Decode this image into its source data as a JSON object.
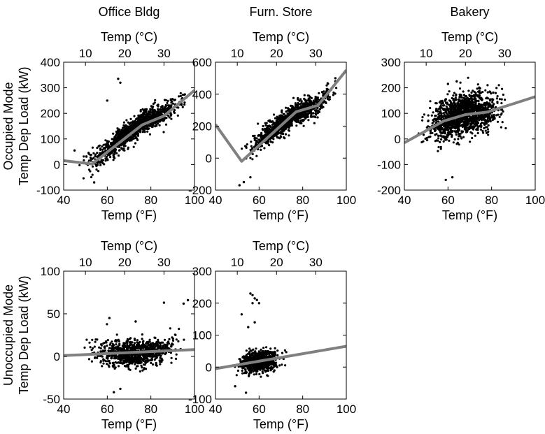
{
  "figure": {
    "row_labels": [
      {
        "line1": "Occupied Mode",
        "line2": "Temp Dep Load (kW)"
      },
      {
        "line1": "Unoccupied Mode",
        "line2": "Temp Dep Load (kW)"
      }
    ],
    "xlabel_bottom": "Temp (°F)",
    "xlabel_top": "Temp (°C)",
    "point_color": "#000000",
    "fit_color": "#808080"
  },
  "chart_data": [
    {
      "type": "scatter",
      "title": "Office Bldg",
      "row": 0,
      "col": 0,
      "xlim": [
        40,
        100
      ],
      "ylim": [
        -100,
        400
      ],
      "xticks": [
        40,
        60,
        80,
        100
      ],
      "yticks": [
        -100,
        0,
        100,
        200,
        300,
        400
      ],
      "top_xticks_c": [
        10,
        20,
        30
      ],
      "xlabel": "Temp (°F)",
      "top_xlabel": "Temp (°C)",
      "fit_line": {
        "x": [
          40,
          53,
          76,
          86,
          100
        ],
        "y": [
          15,
          2,
          155,
          190,
          290
        ]
      },
      "points": {
        "x_range": [
          45,
          100
        ],
        "y_base": {
          "x": [
            45,
            53,
            76,
            86,
            100
          ],
          "y": [
            10,
            5,
            165,
            200,
            290
          ]
        },
        "spread": 38,
        "count": 1200,
        "outliers": [
          [
            65,
            335
          ],
          [
            66,
            320
          ],
          [
            60,
            250
          ],
          [
            45,
            55
          ],
          [
            54,
            -70
          ]
        ]
      }
    },
    {
      "type": "scatter",
      "title": "Furn. Store",
      "row": 0,
      "col": 1,
      "xlim": [
        40,
        100
      ],
      "ylim": [
        -200,
        600
      ],
      "xticks": [
        40,
        60,
        80,
        100
      ],
      "yticks": [
        -200,
        0,
        200,
        400,
        600
      ],
      "top_xticks_c": [
        10,
        20,
        30
      ],
      "xlabel": "Temp (°F)",
      "top_xlabel": "Temp (°C)",
      "fit_line": {
        "x": [
          40,
          52,
          77,
          87,
          100
        ],
        "y": [
          210,
          -20,
          290,
          330,
          550
        ]
      },
      "points": {
        "x_range": [
          50,
          98
        ],
        "y_base": {
          "x": [
            50,
            52,
            77,
            87,
            98
          ],
          "y": [
            20,
            20,
            280,
            340,
            450
          ]
        },
        "spread": 60,
        "count": 1200,
        "outliers": [
          [
            51,
            -170
          ],
          [
            53,
            -150
          ],
          [
            56,
            -120
          ],
          [
            95,
            500
          ]
        ]
      }
    },
    {
      "type": "scatter",
      "title": "Bakery",
      "row": 0,
      "col": 2,
      "xlim": [
        40,
        100
      ],
      "ylim": [
        -200,
        300
      ],
      "xticks": [
        40,
        60,
        80,
        100
      ],
      "yticks": [
        -200,
        -100,
        0,
        100,
        200,
        300
      ],
      "top_xticks_c": [
        10,
        20,
        30
      ],
      "xlabel": "Temp (°F)",
      "top_xlabel": "Temp (°C)",
      "fit_line": {
        "x": [
          40,
          58,
          68,
          78,
          100
        ],
        "y": [
          -15,
          70,
          95,
          105,
          165
        ]
      },
      "points": {
        "x_range": [
          45,
          90
        ],
        "y_base": {
          "x": [
            45,
            58,
            68,
            78,
            90
          ],
          "y": [
            20,
            70,
            100,
            110,
            120
          ]
        },
        "spread": 70,
        "count": 1400,
        "outliers": [
          [
            59,
            -160
          ],
          [
            62,
            -150
          ],
          [
            64,
            225
          ],
          [
            60,
            215
          ]
        ]
      }
    },
    {
      "type": "scatter",
      "title": "",
      "row": 1,
      "col": 0,
      "xlim": [
        40,
        100
      ],
      "ylim": [
        -50,
        100
      ],
      "xticks": [
        40,
        60,
        80,
        100
      ],
      "yticks": [
        -50,
        0,
        50,
        100
      ],
      "top_xticks_c": [
        10,
        20,
        30
      ],
      "xlabel": "Temp (°F)",
      "top_xlabel": "Temp (°C)",
      "fit_line": {
        "x": [
          40,
          100
        ],
        "y": [
          1,
          8
        ]
      },
      "points": {
        "x_range": [
          48,
          98
        ],
        "y_base": {
          "x": [
            48,
            70,
            85,
            98
          ],
          "y": [
            8,
            2,
            8,
            25
          ]
        },
        "spread": 14,
        "count": 900,
        "outliers": [
          [
            97,
            66
          ],
          [
            95,
            62
          ],
          [
            86,
            63
          ],
          [
            63,
            -42
          ],
          [
            66,
            -38
          ],
          [
            61,
            45
          ],
          [
            73,
            41
          ]
        ]
      }
    },
    {
      "type": "scatter",
      "title": "",
      "row": 1,
      "col": 1,
      "xlim": [
        40,
        100
      ],
      "ylim": [
        -100,
        300
      ],
      "xticks": [
        40,
        60,
        80,
        100
      ],
      "yticks": [
        -100,
        0,
        100,
        200,
        300
      ],
      "top_xticks_c": [
        10,
        20,
        30
      ],
      "xlabel": "Temp (°F)",
      "top_xlabel": "Temp (°C)",
      "fit_line": {
        "x": [
          40,
          100
        ],
        "y": [
          -5,
          65
        ]
      },
      "points": {
        "x_range": [
          48,
          73
        ],
        "y_base": {
          "x": [
            48,
            60,
            73
          ],
          "y": [
            0,
            20,
            25
          ]
        },
        "spread": 30,
        "count": 700,
        "outliers": [
          [
            56,
            230
          ],
          [
            57,
            225
          ],
          [
            58,
            215
          ],
          [
            59,
            210
          ],
          [
            57,
            200
          ],
          [
            60,
            200
          ],
          [
            52,
            165
          ],
          [
            55,
            125
          ],
          [
            58,
            140
          ],
          [
            49,
            -60
          ],
          [
            54,
            -80
          ]
        ]
      }
    }
  ]
}
